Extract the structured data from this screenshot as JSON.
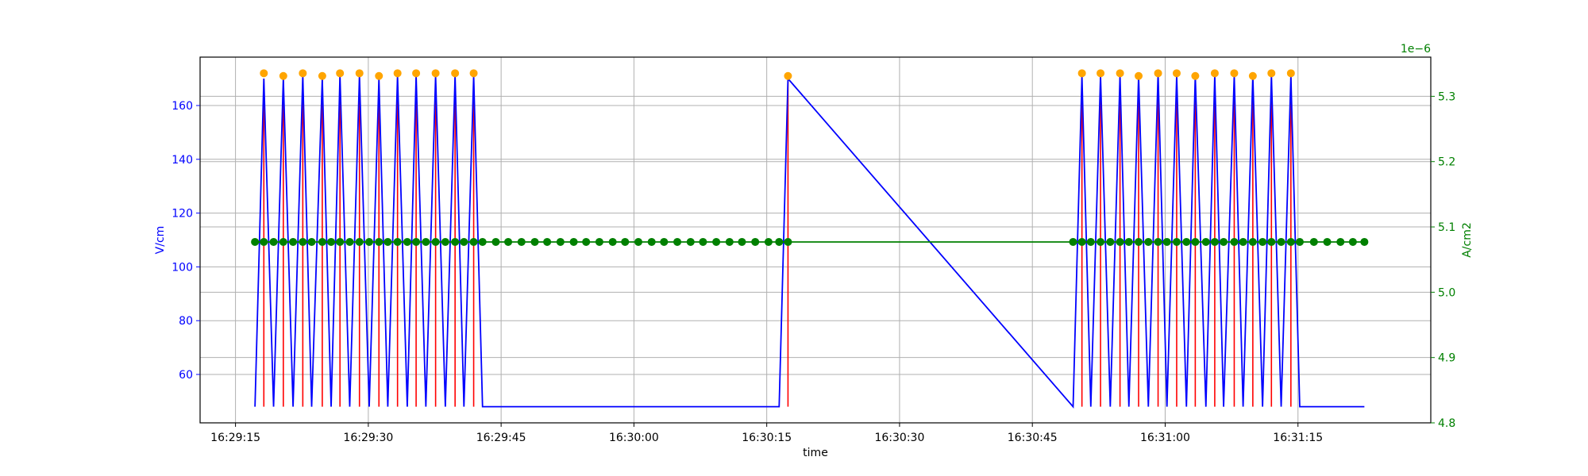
{
  "chart_data": {
    "type": "line",
    "xlabel": "time",
    "ylabel_left": "V/cm",
    "ylabel_right": "A/cm2",
    "right_axis_offset_label": "1e−6",
    "grid": true,
    "x_range": [
      "16:29:11",
      "16:31:30"
    ],
    "x_ticks": [
      "16:29:15",
      "16:29:30",
      "16:29:45",
      "16:30:00",
      "16:30:15",
      "16:30:30",
      "16:30:45",
      "16:31:00",
      "16:31:15"
    ],
    "ylim_left": [
      42,
      178
    ],
    "yticks_left": [
      60,
      80,
      100,
      120,
      140,
      160
    ],
    "ylim_right": [
      4.8,
      5.36
    ],
    "yticks_right": [
      4.8,
      4.9,
      5.0,
      5.1,
      5.2,
      5.3
    ],
    "colors": {
      "voltage_line": "#0000ff",
      "pulse_line": "#ff0000",
      "peak_marker": "#ffa500",
      "current": "#008000",
      "left_axis": "#0000ff",
      "right_axis": "#008000",
      "grid": "#b0b0b0"
    },
    "series": [
      {
        "role": "voltage",
        "axis": "left",
        "x": [
          "16:29:17.2",
          "16:29:18.2",
          "16:29:19.3",
          "16:29:20.4",
          "16:29:21.5",
          "16:29:22.6",
          "16:29:23.6",
          "16:29:24.8",
          "16:29:25.8",
          "16:29:26.8",
          "16:29:27.9",
          "16:29:29.0",
          "16:29:30.1",
          "16:29:31.2",
          "16:29:32.2",
          "16:29:33.3",
          "16:29:34.4",
          "16:29:35.4",
          "16:29:36.5",
          "16:29:37.6",
          "16:29:38.7",
          "16:29:39.8",
          "16:29:40.8",
          "16:29:41.9",
          "16:29:42.9",
          "16:30:16.4",
          "16:30:17.4",
          "16:30:49.6",
          "16:30:50.6",
          "16:30:51.6",
          "16:30:52.7",
          "16:30:53.8",
          "16:30:54.9",
          "16:30:55.9",
          "16:30:57.0",
          "16:30:58.1",
          "16:30:59.2",
          "16:31:00.2",
          "16:31:01.3",
          "16:31:02.4",
          "16:31:03.4",
          "16:31:04.6",
          "16:31:05.6",
          "16:31:06.6",
          "16:31:07.8",
          "16:31:08.8",
          "16:31:09.9",
          "16:31:11.0",
          "16:31:12.0",
          "16:31:13.1",
          "16:31:14.2",
          "16:31:15.2",
          "16:31:16.3",
          "16:31:17.4",
          "16:31:22.5"
        ],
        "values": [
          48,
          170,
          48,
          170,
          48,
          171,
          48,
          170,
          48,
          171,
          48,
          171,
          48,
          170,
          48,
          171,
          48,
          171,
          48,
          171,
          48,
          171,
          48,
          171,
          48,
          48,
          170,
          48,
          171,
          48,
          171,
          48,
          171,
          48,
          171,
          48,
          172,
          48,
          171,
          48,
          171,
          48,
          171,
          48,
          171,
          48,
          171,
          48,
          171,
          48,
          171,
          48,
          48,
          48,
          48
        ]
      },
      {
        "role": "pulses",
        "axis": "left",
        "x": [
          "16:29:18.2",
          "16:29:20.4",
          "16:29:22.6",
          "16:29:24.8",
          "16:29:26.8",
          "16:29:29.0",
          "16:29:31.2",
          "16:29:33.3",
          "16:29:35.4",
          "16:29:37.6",
          "16:29:39.8",
          "16:29:41.9",
          "16:30:17.4",
          "16:30:50.6",
          "16:30:52.7",
          "16:30:54.9",
          "16:30:57.0",
          "16:30:59.2",
          "16:31:01.3",
          "16:31:03.4",
          "16:31:05.6",
          "16:31:07.8",
          "16:31:09.9",
          "16:31:12.0",
          "16:31:14.2"
        ],
        "values": [
          170,
          170,
          171,
          170,
          171,
          171,
          170,
          171,
          171,
          171,
          171,
          171,
          170,
          171,
          171,
          171,
          171,
          172,
          171,
          171,
          171,
          171,
          171,
          171,
          171
        ],
        "baseline": 48
      },
      {
        "role": "peaks",
        "axis": "left",
        "x": [
          "16:29:18.2",
          "16:29:20.4",
          "16:29:22.6",
          "16:29:24.8",
          "16:29:26.8",
          "16:29:29.0",
          "16:29:31.2",
          "16:29:33.3",
          "16:29:35.4",
          "16:29:37.6",
          "16:29:39.8",
          "16:29:41.9",
          "16:30:17.4",
          "16:30:50.6",
          "16:30:52.7",
          "16:30:54.9",
          "16:30:57.0",
          "16:30:59.2",
          "16:31:01.3",
          "16:31:03.4",
          "16:31:05.6",
          "16:31:07.8",
          "16:31:09.9",
          "16:31:12.0",
          "16:31:14.2"
        ],
        "values": [
          172,
          171,
          172,
          171,
          172,
          172,
          171,
          172,
          172,
          172,
          172,
          172,
          171,
          172,
          172,
          172,
          171,
          172,
          172,
          171,
          172,
          172,
          171,
          172,
          172
        ]
      },
      {
        "role": "current",
        "axis": "right",
        "x": [
          "16:29:17.2",
          "16:29:18.2",
          "16:29:19.3",
          "16:29:20.4",
          "16:29:21.5",
          "16:29:22.6",
          "16:29:23.6",
          "16:29:24.8",
          "16:29:25.8",
          "16:29:26.8",
          "16:29:27.9",
          "16:29:29.0",
          "16:29:30.1",
          "16:29:31.2",
          "16:29:32.2",
          "16:29:33.3",
          "16:29:34.4",
          "16:29:35.4",
          "16:29:36.5",
          "16:29:37.6",
          "16:29:38.7",
          "16:29:39.8",
          "16:29:40.8",
          "16:29:41.9",
          "16:29:42.9",
          "16:29:44.4",
          "16:29:45.8",
          "16:29:47.3",
          "16:29:48.8",
          "16:29:50.2",
          "16:29:51.7",
          "16:29:53.2",
          "16:29:54.6",
          "16:29:56.1",
          "16:29:57.6",
          "16:29:59.0",
          "16:30:00.5",
          "16:30:02.0",
          "16:30:03.4",
          "16:30:04.9",
          "16:30:06.4",
          "16:30:07.8",
          "16:30:09.3",
          "16:30:10.8",
          "16:30:12.2",
          "16:30:13.7",
          "16:30:15.2",
          "16:30:16.4",
          "16:30:17.4",
          "16:30:49.6",
          "16:30:50.6",
          "16:30:51.6",
          "16:30:52.7",
          "16:30:53.8",
          "16:30:54.9",
          "16:30:55.9",
          "16:30:57.0",
          "16:30:58.1",
          "16:30:59.2",
          "16:31:00.2",
          "16:31:01.3",
          "16:31:02.4",
          "16:31:03.4",
          "16:31:04.6",
          "16:31:05.6",
          "16:31:06.6",
          "16:31:07.8",
          "16:31:08.8",
          "16:31:09.9",
          "16:31:11.0",
          "16:31:12.0",
          "16:31:13.1",
          "16:31:14.2",
          "16:31:15.2",
          "16:31:16.8",
          "16:31:18.3",
          "16:31:19.8",
          "16:31:21.2",
          "16:31:22.5"
        ],
        "values": [
          5.077,
          5.077,
          5.077,
          5.077,
          5.077,
          5.077,
          5.077,
          5.077,
          5.077,
          5.077,
          5.077,
          5.077,
          5.077,
          5.077,
          5.077,
          5.077,
          5.077,
          5.077,
          5.077,
          5.077,
          5.077,
          5.077,
          5.077,
          5.077,
          5.077,
          5.077,
          5.077,
          5.077,
          5.077,
          5.077,
          5.077,
          5.077,
          5.077,
          5.077,
          5.077,
          5.077,
          5.077,
          5.077,
          5.077,
          5.077,
          5.077,
          5.077,
          5.077,
          5.077,
          5.077,
          5.077,
          5.077,
          5.077,
          5.077,
          5.077,
          5.077,
          5.077,
          5.077,
          5.077,
          5.077,
          5.077,
          5.077,
          5.077,
          5.077,
          5.077,
          5.077,
          5.077,
          5.077,
          5.077,
          5.077,
          5.077,
          5.077,
          5.077,
          5.077,
          5.077,
          5.077,
          5.077,
          5.077,
          5.077,
          5.077,
          5.077,
          5.077,
          5.077,
          5.077
        ]
      }
    ]
  }
}
